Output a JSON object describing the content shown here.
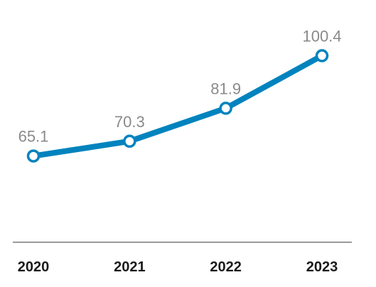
{
  "chart_data": {
    "type": "line",
    "categories": [
      "2020",
      "2021",
      "2022",
      "2023"
    ],
    "values": [
      65.1,
      70.3,
      81.9,
      100.4
    ],
    "data_labels": [
      "65.1",
      "70.3",
      "81.9",
      "100.4"
    ],
    "title": "",
    "xlabel": "",
    "ylabel": "",
    "ylim": [
      40,
      110
    ],
    "grid": false,
    "legend": "none",
    "colors": {
      "line": "#0083BE",
      "marker_fill": "#ffffff",
      "axis": "#9a9a9a",
      "data_label": "#8a8a8a",
      "tick_label": "#1a1a1a"
    }
  }
}
